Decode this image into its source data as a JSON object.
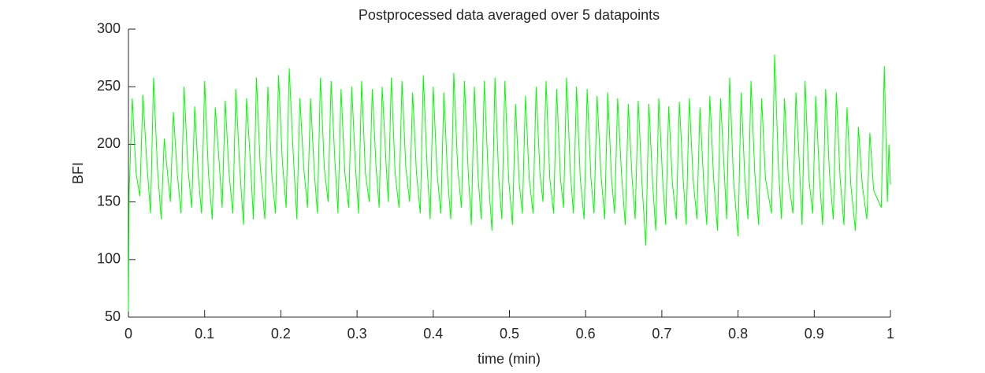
{
  "chart_data": {
    "type": "line",
    "title": "Postprocessed data averaged over 5 datapoints",
    "xlabel": "time (min)",
    "ylabel": "BFI",
    "color": "#00ff00",
    "xlim": [
      0,
      1
    ],
    "ylim": [
      50,
      300
    ],
    "xticks": [
      0,
      0.1,
      0.2,
      0.3,
      0.4,
      0.5,
      0.6,
      0.7,
      0.8,
      0.9,
      1
    ],
    "yticks": [
      50,
      100,
      150,
      200,
      250,
      300
    ],
    "x": [
      0,
      0.001,
      0.005,
      0.01,
      0.015,
      0.019,
      0.024,
      0.029,
      0.033,
      0.038,
      0.043,
      0.047,
      0.052,
      0.055,
      0.059,
      0.064,
      0.069,
      0.073,
      0.078,
      0.083,
      0.087,
      0.092,
      0.096,
      0.1,
      0.105,
      0.11,
      0.114,
      0.119,
      0.123,
      0.127,
      0.132,
      0.137,
      0.141,
      0.146,
      0.151,
      0.155,
      0.16,
      0.164,
      0.168,
      0.173,
      0.179,
      0.183,
      0.188,
      0.193,
      0.197,
      0.202,
      0.207,
      0.211,
      0.216,
      0.221,
      0.225,
      0.23,
      0.235,
      0.239,
      0.244,
      0.248,
      0.252,
      0.257,
      0.262,
      0.266,
      0.271,
      0.275,
      0.279,
      0.284,
      0.289,
      0.293,
      0.298,
      0.302,
      0.306,
      0.311,
      0.316,
      0.32,
      0.325,
      0.329,
      0.333,
      0.338,
      0.341,
      0.345,
      0.35,
      0.355,
      0.359,
      0.364,
      0.369,
      0.373,
      0.378,
      0.383,
      0.387,
      0.392,
      0.396,
      0.4,
      0.405,
      0.41,
      0.414,
      0.419,
      0.423,
      0.427,
      0.432,
      0.437,
      0.441,
      0.446,
      0.45,
      0.454,
      0.459,
      0.463,
      0.467,
      0.472,
      0.477,
      0.481,
      0.486,
      0.49,
      0.494,
      0.499,
      0.504,
      0.508,
      0.513,
      0.517,
      0.521,
      0.526,
      0.531,
      0.535,
      0.54,
      0.544,
      0.548,
      0.553,
      0.558,
      0.562,
      0.567,
      0.571,
      0.575,
      0.58,
      0.584,
      0.588,
      0.593,
      0.598,
      0.602,
      0.607,
      0.611,
      0.615,
      0.62,
      0.625,
      0.629,
      0.634,
      0.638,
      0.642,
      0.647,
      0.652,
      0.656,
      0.661,
      0.665,
      0.669,
      0.674,
      0.679,
      0.683,
      0.688,
      0.692,
      0.696,
      0.701,
      0.705,
      0.709,
      0.714,
      0.719,
      0.723,
      0.728,
      0.732,
      0.736,
      0.741,
      0.746,
      0.75,
      0.755,
      0.759,
      0.763,
      0.768,
      0.773,
      0.777,
      0.782,
      0.785,
      0.789,
      0.794,
      0.8,
      0.804,
      0.809,
      0.813,
      0.817,
      0.822,
      0.827,
      0.831,
      0.836,
      0.844,
      0.848,
      0.853,
      0.857,
      0.861,
      0.866,
      0.872,
      0.876,
      0.881,
      0.884,
      0.888,
      0.893,
      0.898,
      0.902,
      0.907,
      0.911,
      0.915,
      0.92,
      0.925,
      0.929,
      0.934,
      0.939,
      0.943,
      0.948,
      0.954,
      0.958,
      0.963,
      0.969,
      0.973,
      0.978,
      0.988,
      0.992,
      0.996,
      0.998,
      1.0
    ],
    "values": [
      55,
      160,
      240,
      175,
      155,
      243,
      185,
      140,
      258,
      180,
      135,
      205,
      170,
      150,
      228,
      175,
      140,
      250,
      180,
      145,
      233,
      170,
      140,
      255,
      175,
      135,
      232,
      185,
      145,
      238,
      175,
      140,
      248,
      180,
      130,
      240,
      185,
      135,
      258,
      180,
      135,
      250,
      175,
      140,
      260,
      185,
      145,
      266,
      195,
      135,
      240,
      180,
      145,
      240,
      175,
      140,
      258,
      180,
      150,
      255,
      185,
      140,
      248,
      175,
      145,
      250,
      180,
      140,
      255,
      175,
      150,
      248,
      180,
      145,
      250,
      185,
      150,
      258,
      175,
      145,
      255,
      180,
      150,
      245,
      175,
      140,
      260,
      180,
      135,
      250,
      175,
      140,
      245,
      170,
      135,
      262,
      180,
      145,
      255,
      175,
      130,
      250,
      170,
      135,
      255,
      175,
      125,
      258,
      170,
      135,
      255,
      170,
      130,
      235,
      165,
      140,
      242,
      170,
      140,
      250,
      175,
      150,
      255,
      170,
      140,
      248,
      170,
      145,
      258,
      175,
      140,
      250,
      170,
      135,
      248,
      170,
      140,
      242,
      175,
      135,
      245,
      170,
      140,
      240,
      175,
      130,
      235,
      170,
      135,
      238,
      165,
      112,
      235,
      165,
      125,
      240,
      170,
      130,
      233,
      165,
      135,
      237,
      170,
      130,
      240,
      170,
      135,
      232,
      165,
      130,
      242,
      170,
      125,
      240,
      175,
      135,
      258,
      170,
      120,
      245,
      170,
      135,
      255,
      175,
      130,
      240,
      170,
      140,
      278,
      180,
      135,
      240,
      170,
      140,
      245,
      175,
      130,
      255,
      170,
      140,
      242,
      170,
      130,
      248,
      175,
      135,
      245,
      170,
      130,
      232,
      165,
      125,
      215,
      165,
      135,
      210,
      160,
      145,
      268,
      150,
      200,
      165
    ]
  }
}
